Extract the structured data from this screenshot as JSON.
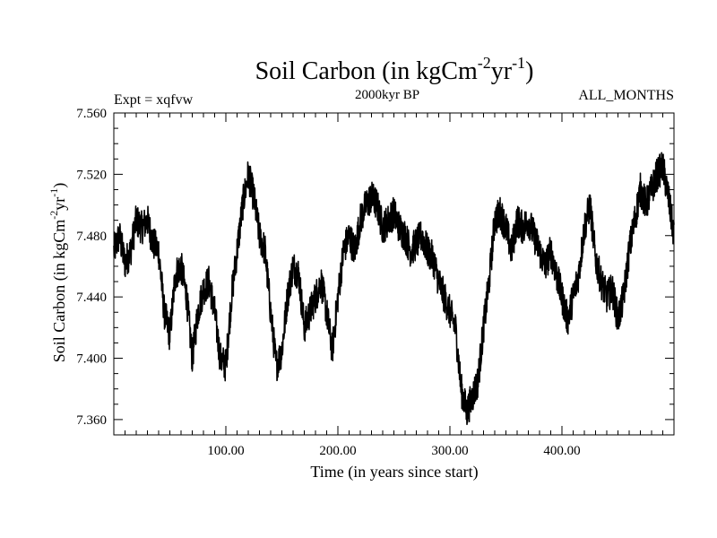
{
  "chart_data": {
    "type": "line",
    "title": {
      "base": "Soil Carbon (in kgCm",
      "sup1": "-2",
      "mid": "yr",
      "sup2": "-1",
      "end": ")"
    },
    "subtitle": "2000kyr BP",
    "expt_label": "Expt = xqfvw",
    "months_label": "ALL_MONTHS",
    "xlabel": "Time (in years since start)",
    "ylabel": {
      "base": "Soil Carbon (in kgCm",
      "sup1": "-2",
      "mid": "yr",
      "sup2": "-1",
      "end": ")"
    },
    "xlim": [
      0,
      500
    ],
    "ylim": [
      7.35,
      7.56
    ],
    "x_ticks": [
      100,
      200,
      300,
      400
    ],
    "x_tick_labels": [
      "100.00",
      "200.00",
      "300.00",
      "400.00"
    ],
    "y_ticks": [
      7.36,
      7.4,
      7.44,
      7.48,
      7.52,
      7.56
    ],
    "y_tick_labels": [
      "7.360",
      "7.400",
      "7.440",
      "7.480",
      "7.520",
      "7.560"
    ],
    "series": [
      {
        "name": "soil_carbon",
        "color": "#000000",
        "x": [
          0,
          5,
          10,
          15,
          20,
          25,
          30,
          35,
          40,
          45,
          50,
          55,
          60,
          65,
          70,
          75,
          80,
          85,
          90,
          95,
          100,
          105,
          110,
          115,
          120,
          125,
          130,
          135,
          140,
          145,
          150,
          155,
          160,
          165,
          170,
          175,
          180,
          185,
          190,
          195,
          200,
          205,
          210,
          215,
          220,
          225,
          230,
          235,
          240,
          245,
          250,
          255,
          260,
          265,
          270,
          275,
          280,
          285,
          290,
          295,
          300,
          305,
          310,
          315,
          320,
          325,
          330,
          335,
          340,
          345,
          350,
          355,
          360,
          365,
          370,
          375,
          380,
          385,
          390,
          395,
          400,
          405,
          410,
          415,
          420,
          425,
          430,
          435,
          440,
          445,
          450,
          455,
          460,
          465,
          470,
          475,
          480,
          485,
          490,
          495,
          500
        ],
        "values": [
          7.47,
          7.48,
          7.462,
          7.47,
          7.49,
          7.485,
          7.49,
          7.475,
          7.47,
          7.43,
          7.415,
          7.455,
          7.46,
          7.44,
          7.4,
          7.43,
          7.445,
          7.45,
          7.43,
          7.4,
          7.395,
          7.44,
          7.47,
          7.5,
          7.52,
          7.505,
          7.48,
          7.47,
          7.43,
          7.395,
          7.405,
          7.44,
          7.46,
          7.455,
          7.42,
          7.43,
          7.44,
          7.45,
          7.43,
          7.405,
          7.44,
          7.47,
          7.48,
          7.47,
          7.49,
          7.5,
          7.505,
          7.5,
          7.485,
          7.49,
          7.495,
          7.485,
          7.48,
          7.47,
          7.475,
          7.48,
          7.47,
          7.465,
          7.45,
          7.44,
          7.43,
          7.42,
          7.38,
          7.365,
          7.375,
          7.385,
          7.42,
          7.45,
          7.49,
          7.495,
          7.485,
          7.47,
          7.49,
          7.485,
          7.49,
          7.48,
          7.47,
          7.46,
          7.47,
          7.455,
          7.44,
          7.425,
          7.44,
          7.455,
          7.485,
          7.5,
          7.465,
          7.45,
          7.44,
          7.445,
          7.425,
          7.44,
          7.47,
          7.49,
          7.51,
          7.5,
          7.51,
          7.52,
          7.525,
          7.505,
          7.48
        ]
      }
    ]
  }
}
